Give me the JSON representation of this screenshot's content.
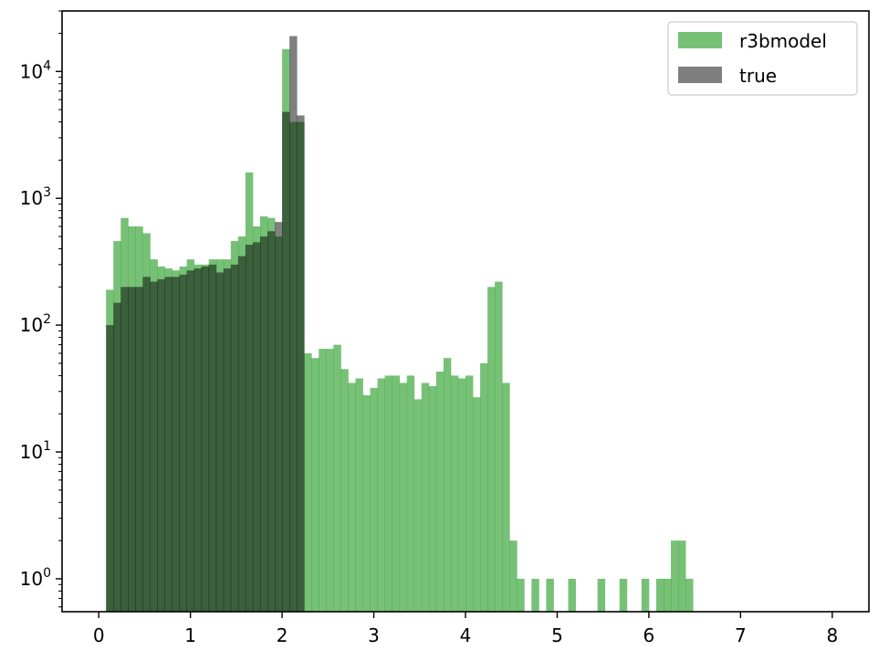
{
  "chart_data": {
    "type": "bar",
    "title": "",
    "xlabel": "",
    "ylabel": "",
    "yscale": "log",
    "xlim": [
      -0.4,
      8.4
    ],
    "ylim": [
      0.55,
      30000
    ],
    "grid": false,
    "legend_placement": "top-right",
    "bin_width": 0.08,
    "x_ticks": [
      0,
      1,
      2,
      3,
      4,
      5,
      6,
      7,
      8
    ],
    "y_ticks": [
      {
        "value": 1,
        "base": "10",
        "exp": "0"
      },
      {
        "value": 10,
        "base": "10",
        "exp": "1"
      },
      {
        "value": 100,
        "base": "10",
        "exp": "2"
      },
      {
        "value": 1000,
        "base": "10",
        "exp": "3"
      },
      {
        "value": 10000,
        "base": "10",
        "exp": "4"
      }
    ],
    "series": [
      {
        "name": "r3bmodel",
        "color": "#2ca02c",
        "opacity": 0.65,
        "bins": [
          [
            0.08,
            190
          ],
          [
            0.16,
            460
          ],
          [
            0.24,
            700
          ],
          [
            0.32,
            600
          ],
          [
            0.4,
            600
          ],
          [
            0.48,
            530
          ],
          [
            0.56,
            330
          ],
          [
            0.64,
            290
          ],
          [
            0.72,
            280
          ],
          [
            0.8,
            270
          ],
          [
            0.88,
            290
          ],
          [
            0.96,
            330
          ],
          [
            1.04,
            300
          ],
          [
            1.12,
            300
          ],
          [
            1.2,
            330
          ],
          [
            1.28,
            330
          ],
          [
            1.36,
            330
          ],
          [
            1.44,
            460
          ],
          [
            1.52,
            500
          ],
          [
            1.6,
            1600
          ],
          [
            1.68,
            600
          ],
          [
            1.76,
            720
          ],
          [
            1.84,
            700
          ],
          [
            1.92,
            500
          ],
          [
            2.0,
            15000
          ],
          [
            2.08,
            4000
          ],
          [
            2.16,
            4000
          ],
          [
            2.24,
            60
          ],
          [
            2.32,
            55
          ],
          [
            2.4,
            65
          ],
          [
            2.48,
            65
          ],
          [
            2.56,
            70
          ],
          [
            2.64,
            45
          ],
          [
            2.72,
            35
          ],
          [
            2.8,
            38
          ],
          [
            2.88,
            28
          ],
          [
            2.96,
            32
          ],
          [
            3.04,
            38
          ],
          [
            3.12,
            40
          ],
          [
            3.2,
            40
          ],
          [
            3.28,
            35
          ],
          [
            3.36,
            40
          ],
          [
            3.44,
            26
          ],
          [
            3.52,
            35
          ],
          [
            3.6,
            33
          ],
          [
            3.68,
            43
          ],
          [
            3.76,
            55
          ],
          [
            3.84,
            40
          ],
          [
            3.92,
            38
          ],
          [
            4.0,
            40
          ],
          [
            4.08,
            27
          ],
          [
            4.16,
            50
          ],
          [
            4.24,
            200
          ],
          [
            4.32,
            220
          ],
          [
            4.4,
            35
          ],
          [
            4.48,
            2
          ],
          [
            4.56,
            1
          ],
          [
            4.64,
            0
          ],
          [
            4.72,
            1
          ],
          [
            4.8,
            0
          ],
          [
            4.88,
            1
          ],
          [
            4.96,
            0
          ],
          [
            5.04,
            0
          ],
          [
            5.12,
            1
          ],
          [
            5.2,
            0
          ],
          [
            5.28,
            0
          ],
          [
            5.36,
            0
          ],
          [
            5.44,
            1
          ],
          [
            5.52,
            0
          ],
          [
            5.6,
            0
          ],
          [
            5.68,
            1
          ],
          [
            5.76,
            0
          ],
          [
            5.84,
            0
          ],
          [
            5.92,
            1
          ],
          [
            6.0,
            0
          ],
          [
            6.08,
            1
          ],
          [
            6.16,
            1
          ],
          [
            6.24,
            2
          ],
          [
            6.32,
            2
          ],
          [
            6.4,
            1
          ]
        ]
      },
      {
        "name": "true",
        "color": "#000000",
        "opacity": 0.5,
        "bins": [
          [
            0.08,
            100
          ],
          [
            0.16,
            150
          ],
          [
            0.24,
            200
          ],
          [
            0.32,
            200
          ],
          [
            0.4,
            200
          ],
          [
            0.48,
            240
          ],
          [
            0.56,
            220
          ],
          [
            0.64,
            230
          ],
          [
            0.72,
            240
          ],
          [
            0.8,
            240
          ],
          [
            0.88,
            250
          ],
          [
            0.96,
            270
          ],
          [
            1.04,
            280
          ],
          [
            1.12,
            290
          ],
          [
            1.2,
            300
          ],
          [
            1.28,
            260
          ],
          [
            1.36,
            280
          ],
          [
            1.44,
            300
          ],
          [
            1.52,
            350
          ],
          [
            1.6,
            430
          ],
          [
            1.68,
            450
          ],
          [
            1.76,
            500
          ],
          [
            1.84,
            550
          ],
          [
            1.92,
            650
          ],
          [
            2.0,
            4800
          ],
          [
            2.08,
            19000
          ],
          [
            2.16,
            4500
          ],
          [
            2.24,
            0.3
          ]
        ]
      }
    ]
  },
  "legend": {
    "entries": [
      {
        "label": "r3bmodel",
        "color": "#2ca02c",
        "opacity": 0.65
      },
      {
        "label": "true",
        "color": "#000000",
        "opacity": 0.5
      }
    ]
  }
}
